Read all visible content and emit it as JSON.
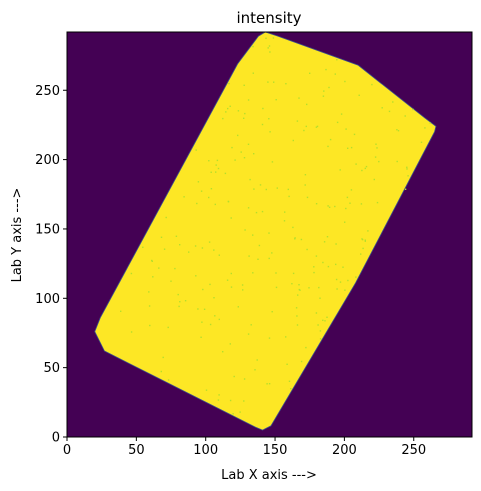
{
  "chart_data": {
    "type": "heatmap",
    "title": "intensity",
    "xlabel": "Lab X axis --->",
    "ylabel": "Lab Y axis --->",
    "xlim": [
      0,
      292
    ],
    "ylim": [
      0,
      292
    ],
    "x_ticks": [
      0,
      50,
      100,
      150,
      200,
      250
    ],
    "y_ticks": [
      0,
      50,
      100,
      150,
      200,
      250
    ],
    "colormap": "viridis",
    "background_color": "#440154",
    "region_color": "#fde725",
    "speckle_color": "#b5de2b",
    "region_polygon": [
      [
        143,
        292
      ],
      [
        152,
        289
      ],
      [
        210,
        268
      ],
      [
        258,
        230
      ],
      [
        266,
        224
      ],
      [
        265,
        220
      ],
      [
        208,
        111
      ],
      [
        147,
        8
      ],
      [
        141,
        5
      ],
      [
        136,
        7
      ],
      [
        27,
        62
      ],
      [
        20,
        76
      ],
      [
        24,
        86
      ],
      [
        123,
        269
      ],
      [
        138,
        289
      ]
    ],
    "grid": false
  }
}
